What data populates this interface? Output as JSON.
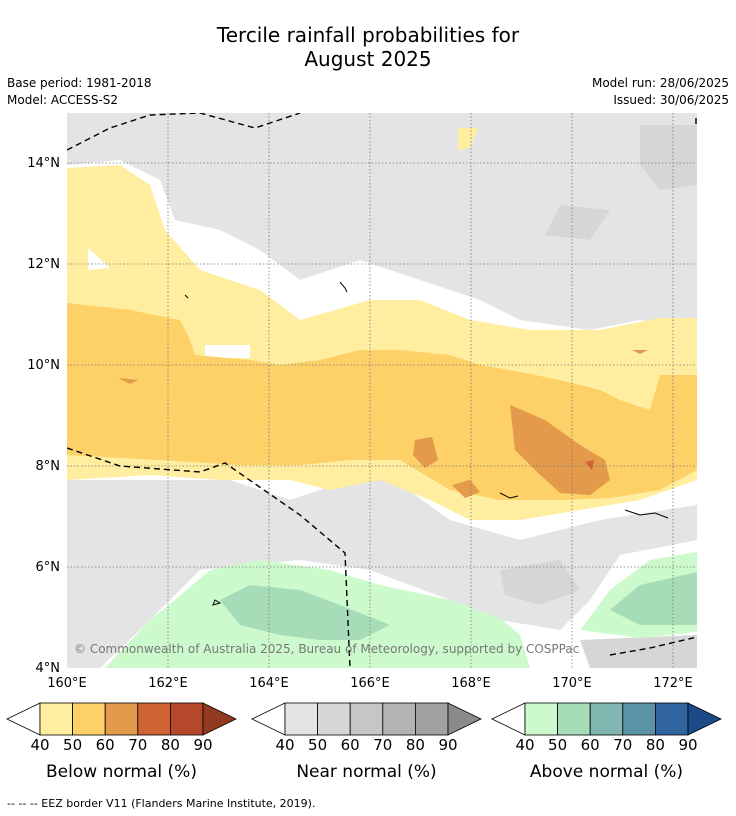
{
  "title_line1": "Tercile rainfall probabilities for",
  "title_line2": "August 2025",
  "base_period": "Base period: 1981-2018",
  "model": "Model: ACCESS-S2",
  "model_run": "Model run: 28/06/2025",
  "issued": "Issued: 30/06/2025",
  "copyright": "© Commonwealth of Australia 2025, Bureau of Meteorology, supported by COSPPac",
  "footer": "--  --  -- EEZ border V11 (Flanders Marine Institute, 2019).",
  "map": {
    "lon_range": [
      160,
      172.5
    ],
    "lat_range": [
      4,
      15
    ],
    "lon_ticks": [
      "160°E",
      "162°E",
      "164°E",
      "166°E",
      "168°E",
      "170°E",
      "172°E"
    ],
    "lat_ticks": [
      "4°N",
      "6°N",
      "8°N",
      "10°N",
      "12°N",
      "14°N"
    ]
  },
  "colorbars": [
    {
      "label": "Below normal (%)",
      "ticks": [
        "40",
        "50",
        "60",
        "70",
        "80",
        "90"
      ],
      "colors": [
        "#ffeea0",
        "#fdd068",
        "#e39a4a",
        "#d06332",
        "#b5472a",
        "#923a1f"
      ]
    },
    {
      "label": "Near normal (%)",
      "ticks": [
        "40",
        "50",
        "60",
        "70",
        "80",
        "90"
      ],
      "colors": [
        "#e4e4e4",
        "#d6d6d6",
        "#c6c6c6",
        "#b3b3b3",
        "#a1a1a1",
        "#8a8a8a"
      ]
    },
    {
      "label": "Above normal (%)",
      "ticks": [
        "40",
        "50",
        "60",
        "70",
        "80",
        "90"
      ],
      "colors": [
        "#ccfacc",
        "#a6dcb8",
        "#7fb7b0",
        "#5a93a5",
        "#3165a0",
        "#1a4a88"
      ]
    }
  ]
}
